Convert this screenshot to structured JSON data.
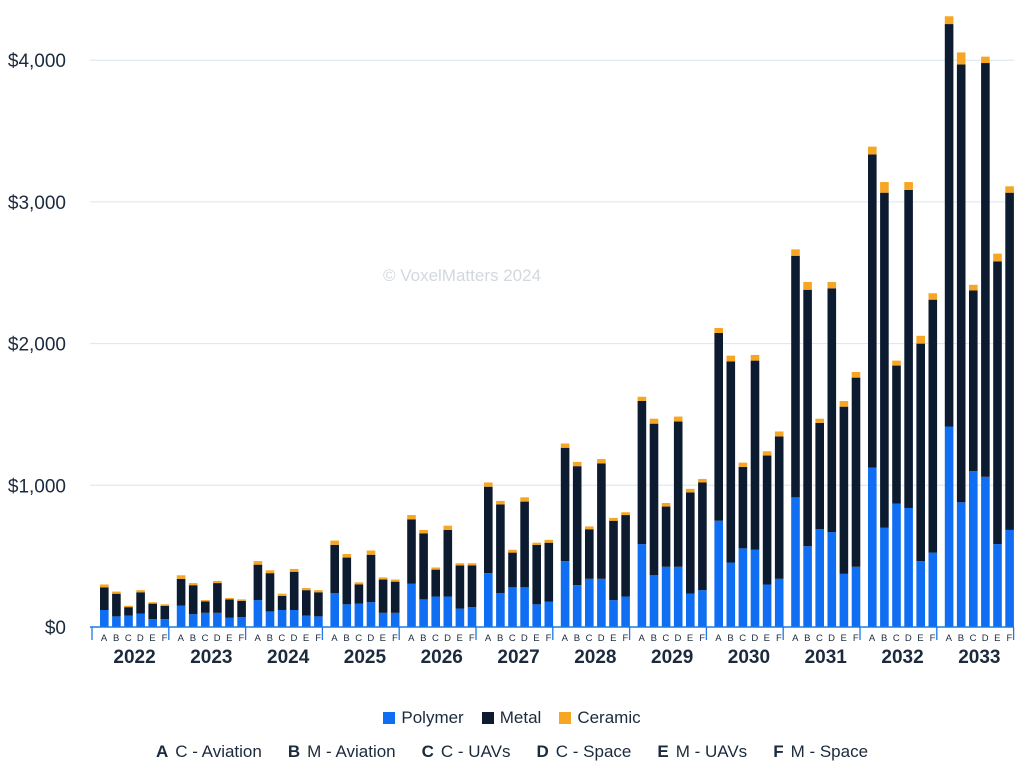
{
  "watermark": "© VoxelMatters 2024",
  "colors": {
    "Polymer": "#0f6ef2",
    "Metal": "#0d1b30",
    "Ceramic": "#f6a623",
    "grid": "#d8e6f0",
    "axis": "#1a7ae8"
  },
  "chart_data": {
    "type": "bar",
    "stacked": true,
    "grouped": true,
    "yticks": [
      "$0",
      "$1,000",
      "$2,000",
      "$3,000",
      "$4,000"
    ],
    "ylim": [
      0,
      4300
    ],
    "grid": true,
    "legend_position": "bottom",
    "years": [
      "2022",
      "2023",
      "2024",
      "2025",
      "2026",
      "2027",
      "2028",
      "2029",
      "2030",
      "2031",
      "2032",
      "2033"
    ],
    "subcategory_labels": [
      "A",
      "B",
      "C",
      "D",
      "E",
      "F"
    ],
    "series_names": [
      "Polymer",
      "Metal",
      "Ceramic"
    ],
    "values": {
      "2022": [
        [
          120,
          160,
          20
        ],
        [
          75,
          160,
          15
        ],
        [
          80,
          60,
          10
        ],
        [
          95,
          150,
          15
        ],
        [
          55,
          110,
          10
        ],
        [
          55,
          95,
          10
        ]
      ],
      "2023": [
        [
          150,
          190,
          25
        ],
        [
          90,
          205,
          15
        ],
        [
          100,
          80,
          10
        ],
        [
          100,
          210,
          15
        ],
        [
          65,
          130,
          10
        ],
        [
          70,
          115,
          10
        ]
      ],
      "2024": [
        [
          190,
          250,
          25
        ],
        [
          110,
          270,
          20
        ],
        [
          120,
          100,
          15
        ],
        [
          120,
          270,
          20
        ],
        [
          80,
          180,
          15
        ],
        [
          75,
          170,
          15
        ]
      ],
      "2025": [
        [
          240,
          340,
          30
        ],
        [
          160,
          330,
          25
        ],
        [
          165,
          135,
          15
        ],
        [
          175,
          335,
          30
        ],
        [
          100,
          235,
          15
        ],
        [
          100,
          220,
          15
        ]
      ],
      "2026": [
        [
          305,
          455,
          30
        ],
        [
          195,
          465,
          25
        ],
        [
          215,
          190,
          15
        ],
        [
          215,
          470,
          30
        ],
        [
          130,
          305,
          15
        ],
        [
          140,
          295,
          15
        ]
      ],
      "2027": [
        [
          380,
          610,
          30
        ],
        [
          240,
          625,
          25
        ],
        [
          280,
          245,
          20
        ],
        [
          280,
          605,
          30
        ],
        [
          160,
          420,
          15
        ],
        [
          180,
          415,
          20
        ]
      ],
      "2028": [
        [
          465,
          800,
          30
        ],
        [
          295,
          840,
          30
        ],
        [
          340,
          350,
          20
        ],
        [
          340,
          815,
          30
        ],
        [
          190,
          560,
          20
        ],
        [
          215,
          575,
          20
        ]
      ],
      "2029": [
        [
          585,
          1010,
          30
        ],
        [
          365,
          1070,
          35
        ],
        [
          425,
          425,
          25
        ],
        [
          425,
          1025,
          35
        ],
        [
          235,
          715,
          25
        ],
        [
          260,
          760,
          25
        ]
      ],
      "2030": [
        [
          750,
          1325,
          35
        ],
        [
          455,
          1420,
          40
        ],
        [
          555,
          575,
          30
        ],
        [
          545,
          1335,
          40
        ],
        [
          300,
          910,
          30
        ],
        [
          340,
          1005,
          35
        ]
      ],
      "2031": [
        [
          915,
          1705,
          45
        ],
        [
          570,
          1810,
          55
        ],
        [
          690,
          750,
          30
        ],
        [
          670,
          1720,
          45
        ],
        [
          375,
          1180,
          40
        ],
        [
          425,
          1335,
          40
        ]
      ],
      "2032": [
        [
          1125,
          2210,
          55
        ],
        [
          700,
          2365,
          75
        ],
        [
          870,
          975,
          35
        ],
        [
          840,
          2245,
          55
        ],
        [
          465,
          1535,
          55
        ],
        [
          525,
          1785,
          45
        ]
      ],
      "2033": [
        [
          1415,
          2840,
          55
        ],
        [
          880,
          3090,
          85
        ],
        [
          1100,
          1275,
          40
        ],
        [
          1060,
          2920,
          45
        ],
        [
          585,
          1995,
          55
        ],
        [
          685,
          2380,
          45
        ]
      ]
    }
  },
  "legend": [
    {
      "key": "Polymer",
      "label": "Polymer"
    },
    {
      "key": "Metal",
      "label": "Metal"
    },
    {
      "key": "Ceramic",
      "label": "Ceramic"
    }
  ],
  "codes": [
    {
      "letter": "A",
      "label": "C - Aviation"
    },
    {
      "letter": "B",
      "label": "M - Aviation"
    },
    {
      "letter": "C",
      "label": "C - UAVs"
    },
    {
      "letter": "D",
      "label": "C - Space"
    },
    {
      "letter": "E",
      "label": "M - UAVs"
    },
    {
      "letter": "F",
      "label": "M - Space"
    }
  ]
}
